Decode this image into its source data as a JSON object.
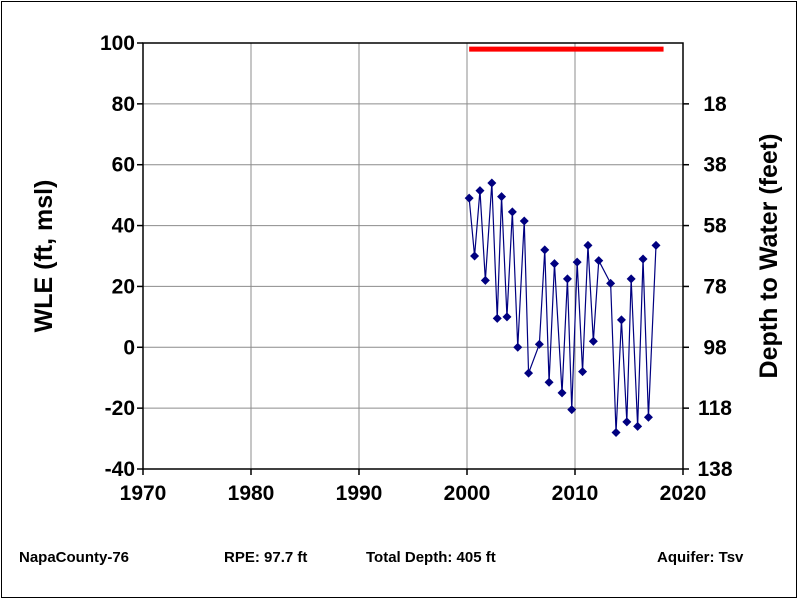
{
  "chart_data": {
    "type": "line",
    "title": "",
    "xlabel": "",
    "ylabel": "WLE (ft, msl)",
    "y2label": "Depth to Water (feet)",
    "xlim": [
      1970,
      2020
    ],
    "ylim": [
      -40,
      100
    ],
    "x_ticks": [
      1970,
      1980,
      1990,
      2000,
      2010,
      2020
    ],
    "y_ticks": [
      -40,
      -20,
      0,
      20,
      40,
      60,
      80,
      100
    ],
    "y2_ticks": [
      138,
      118,
      98,
      78,
      58,
      38,
      18
    ],
    "grid": true,
    "colors": {
      "series": "#000080",
      "reference_line": "#ff0000"
    },
    "reference_line": {
      "x_start": 2000.2,
      "x_end": 2018.2,
      "y": 98
    },
    "series": [
      {
        "points": [
          [
            2000.2,
            49
          ],
          [
            2000.7,
            30
          ],
          [
            2001.2,
            51.5
          ],
          [
            2001.7,
            22
          ],
          [
            2002.3,
            54
          ],
          [
            2002.8,
            9.5
          ],
          [
            2003.2,
            49.5
          ],
          [
            2003.7,
            10
          ],
          [
            2004.2,
            44.5
          ],
          [
            2004.7,
            0
          ],
          [
            2005.3,
            41.5
          ],
          [
            2005.7,
            -8.5
          ],
          [
            2006.7,
            1
          ],
          [
            2007.2,
            32
          ],
          [
            2007.6,
            -11.5
          ],
          [
            2008.1,
            27.5
          ],
          [
            2008.8,
            -15
          ],
          [
            2009.3,
            22.5
          ],
          [
            2009.7,
            -20.5
          ],
          [
            2010.2,
            28
          ],
          [
            2010.7,
            -8
          ],
          [
            2011.2,
            33.5
          ],
          [
            2011.7,
            2
          ],
          [
            2012.2,
            28.5
          ],
          [
            2013.3,
            21
          ],
          [
            2013.8,
            -28
          ],
          [
            2014.3,
            9
          ],
          [
            2014.8,
            -24.5
          ],
          [
            2015.2,
            22.5
          ],
          [
            2015.8,
            -26
          ],
          [
            2016.3,
            29
          ],
          [
            2016.8,
            -23
          ],
          [
            2017.5,
            33.5
          ]
        ]
      }
    ]
  },
  "footer": {
    "well_id": "NapaCounty-76",
    "rpe": "RPE: 97.7 ft",
    "total_depth": "Total Depth: 405 ft",
    "aquifer": "Aquifer: Tsv"
  }
}
